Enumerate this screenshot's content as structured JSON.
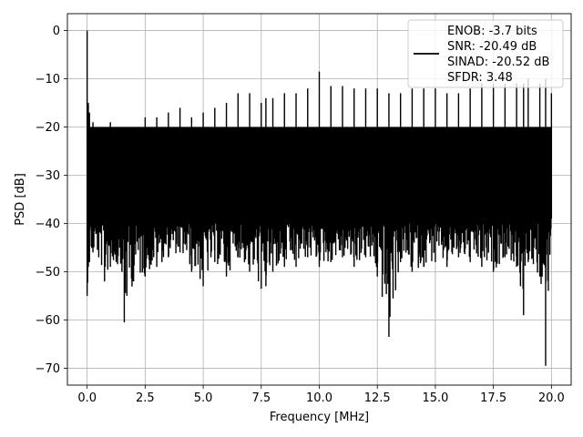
{
  "chart_data": {
    "type": "line",
    "xlabel": "Frequency [MHz]",
    "ylabel": "PSD [dB]",
    "xlim": [
      -0.85,
      20.85
    ],
    "ylim": [
      -73.5,
      3.5
    ],
    "xticks": [
      0.0,
      2.5,
      5.0,
      7.5,
      10.0,
      12.5,
      15.0,
      17.5,
      20.0
    ],
    "xtick_labels": [
      "0.0",
      "2.5",
      "5.0",
      "7.5",
      "10.0",
      "12.5",
      "15.0",
      "17.5",
      "20.0"
    ],
    "yticks": [
      0,
      -10,
      -20,
      -30,
      -40,
      -50,
      -60,
      -70
    ],
    "ytick_labels": [
      "0",
      "−10",
      "−20",
      "−30",
      "−40",
      "−50",
      "−60",
      "−70"
    ],
    "grid": true,
    "legend_position": "top-right",
    "series": [
      {
        "name": "ENOB: -3.7 bits\nSNR: -20.49 dB\nSINAD: -20.52 dB\nSFDR: 3.48",
        "color": "#000000",
        "noise_floor_band_db": [
          -40,
          -20
        ],
        "x": [
          0.0,
          0.05,
          0.1,
          0.25,
          0.5,
          0.75,
          1.0,
          1.25,
          1.5,
          1.6,
          2.0,
          2.5,
          3.0,
          3.5,
          4.0,
          4.5,
          5.0,
          5.5,
          6.0,
          6.5,
          7.0,
          7.5,
          7.7,
          8.0,
          8.5,
          9.0,
          9.5,
          10.0,
          10.5,
          11.0,
          11.5,
          12.0,
          12.5,
          13.0,
          13.5,
          14.0,
          14.5,
          15.0,
          15.5,
          16.0,
          16.5,
          17.0,
          17.5,
          18.0,
          18.5,
          18.8,
          19.0,
          19.5,
          19.75,
          20.0
        ],
        "peak_db": [
          0.0,
          -15,
          -17,
          -19,
          -22,
          -21,
          -19,
          -20,
          -20,
          -21,
          -20,
          -18,
          -18,
          -17,
          -16,
          -18,
          -17,
          -16,
          -15,
          -13,
          -13,
          -15,
          -14,
          -14,
          -13,
          -13,
          -12,
          -8.5,
          -11.5,
          -11.5,
          -12,
          -12,
          -12,
          -13,
          -13,
          -12,
          -12,
          -12,
          -13,
          -13,
          -12,
          -11,
          -11,
          -11,
          -11,
          -11,
          -10,
          -11,
          -10,
          -13
        ],
        "trough_db": [
          -55,
          -49,
          -48,
          -46,
          -47,
          -52,
          -49,
          -48,
          -50,
          -60.5,
          -52,
          -51,
          -49,
          -47,
          -46,
          -50,
          -53,
          -48,
          -51,
          -47,
          -50,
          -53.5,
          -53,
          -50,
          -49,
          -49,
          -47,
          -49,
          -48,
          -47,
          -49,
          -47,
          -51,
          -63.5,
          -48,
          -50,
          -49,
          -48,
          -49,
          -47,
          -48,
          -49,
          -50,
          -47,
          -49,
          -59,
          -48,
          -51,
          -69.5,
          -39
        ]
      }
    ]
  }
}
